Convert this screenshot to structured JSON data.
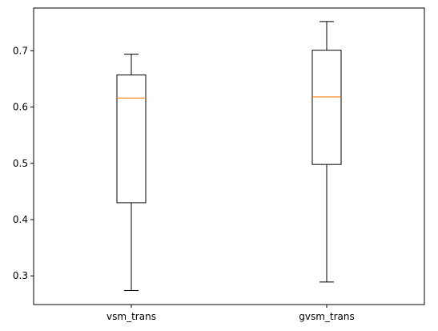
{
  "chart_data": {
    "type": "boxplot",
    "title": "",
    "xlabel": "",
    "ylabel": "",
    "categories": [
      "vsm_trans",
      "gvsm_trans"
    ],
    "boxes": [
      {
        "category": "vsm_trans",
        "whisker_low": 0.274,
        "q1": 0.43,
        "median": 0.616,
        "q3": 0.657,
        "whisker_high": 0.694
      },
      {
        "category": "gvsm_trans",
        "whisker_low": 0.289,
        "q1": 0.498,
        "median": 0.618,
        "q3": 0.701,
        "whisker_high": 0.752
      }
    ],
    "ylim": [
      0.249,
      0.776
    ],
    "yticks": [
      0.3,
      0.4,
      0.5,
      0.6,
      0.7
    ],
    "ytick_labels": [
      "0.3",
      "0.4",
      "0.5",
      "0.6",
      "0.7"
    ],
    "grid": false,
    "colors": {
      "box": "#000000",
      "median": "#ff7f0e",
      "axes": "#000000",
      "background": "#ffffff"
    }
  }
}
